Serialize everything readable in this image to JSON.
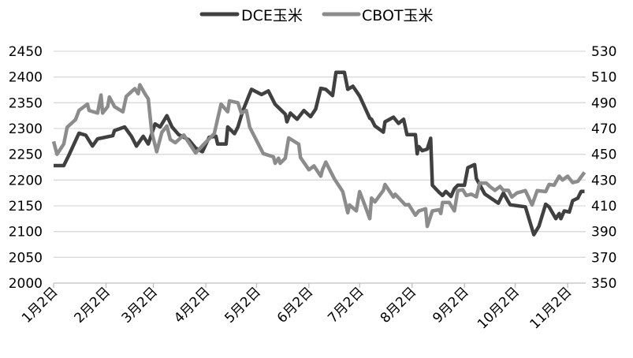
{
  "chart_data": {
    "type": "line",
    "title": "",
    "xlabel": "",
    "ylabel": "",
    "y2label": "",
    "grid": true,
    "legend_position": "top",
    "xlim": [
      "01-02",
      "11-12"
    ],
    "ylim": [
      2000,
      2450
    ],
    "y2lim": [
      350,
      530
    ],
    "x_ticks": [
      {
        "date": "01-02",
        "label": "1月2日"
      },
      {
        "date": "02-02",
        "label": "2月2日"
      },
      {
        "date": "03-02",
        "label": "3月2日"
      },
      {
        "date": "04-02",
        "label": "4月2日"
      },
      {
        "date": "05-02",
        "label": "5月2日"
      },
      {
        "date": "06-02",
        "label": "6月2日"
      },
      {
        "date": "07-02",
        "label": "7月2日"
      },
      {
        "date": "08-02",
        "label": "8月2日"
      },
      {
        "date": "09-02",
        "label": "9月2日"
      },
      {
        "date": "10-02",
        "label": "10月2日"
      },
      {
        "date": "11-02",
        "label": "11月2日"
      }
    ],
    "y_ticks": [
      "2000",
      "2050",
      "2100",
      "2150",
      "2200",
      "2250",
      "2300",
      "2350",
      "2400",
      "2450"
    ],
    "y2_ticks": [
      "350",
      "370",
      "390",
      "410",
      "430",
      "450",
      "470",
      "490",
      "510",
      "530"
    ],
    "series": [
      {
        "name": "DCE玉米",
        "axis": "left",
        "color": "#404040",
        "points": [
          [
            "01-02",
            2228
          ],
          [
            "01-08",
            2228
          ],
          [
            "01-11",
            2248
          ],
          [
            "01-17",
            2291
          ],
          [
            "01-21",
            2287
          ],
          [
            "01-25",
            2266
          ],
          [
            "01-28",
            2280
          ],
          [
            "02-06",
            2286
          ],
          [
            "02-07",
            2296
          ],
          [
            "02-13",
            2303
          ],
          [
            "02-17",
            2285
          ],
          [
            "02-20",
            2266
          ],
          [
            "02-24",
            2285
          ],
          [
            "02-27",
            2270
          ],
          [
            "03-03",
            2309
          ],
          [
            "03-06",
            2303
          ],
          [
            "03-10",
            2325
          ],
          [
            "03-13",
            2303
          ],
          [
            "03-17",
            2288
          ],
          [
            "03-23",
            2278
          ],
          [
            "03-27",
            2262
          ],
          [
            "03-31",
            2255
          ],
          [
            "04-04",
            2283
          ],
          [
            "04-08",
            2285
          ],
          [
            "04-09",
            2270
          ],
          [
            "04-14",
            2270
          ],
          [
            "04-15",
            2303
          ],
          [
            "04-19",
            2290
          ],
          [
            "04-21",
            2303
          ],
          [
            "04-24",
            2335
          ],
          [
            "04-29",
            2376
          ],
          [
            "05-05",
            2366
          ],
          [
            "05-09",
            2373
          ],
          [
            "05-13",
            2347
          ],
          [
            "05-19",
            2328
          ],
          [
            "05-20",
            2313
          ],
          [
            "05-22",
            2330
          ],
          [
            "05-26",
            2318
          ],
          [
            "05-30",
            2335
          ],
          [
            "06-03",
            2323
          ],
          [
            "06-06",
            2338
          ],
          [
            "06-09",
            2378
          ],
          [
            "06-12",
            2376
          ],
          [
            "06-16",
            2364
          ],
          [
            "06-18",
            2409
          ],
          [
            "06-23",
            2409
          ],
          [
            "06-25",
            2376
          ],
          [
            "06-28",
            2382
          ],
          [
            "07-02",
            2363
          ],
          [
            "07-08",
            2320
          ],
          [
            "07-09",
            2318
          ],
          [
            "07-11",
            2305
          ],
          [
            "07-16",
            2293
          ],
          [
            "07-17",
            2313
          ],
          [
            "07-22",
            2322
          ],
          [
            "07-25",
            2310
          ],
          [
            "07-28",
            2318
          ],
          [
            "07-30",
            2288
          ],
          [
            "08-04",
            2288
          ],
          [
            "08-05",
            2251
          ],
          [
            "08-06",
            2265
          ],
          [
            "08-08",
            2257
          ],
          [
            "08-11",
            2260
          ],
          [
            "08-13",
            2281
          ],
          [
            "08-14",
            2190
          ],
          [
            "08-18",
            2176
          ],
          [
            "08-20",
            2170
          ],
          [
            "08-22",
            2178
          ],
          [
            "08-25",
            2168
          ],
          [
            "08-27",
            2183
          ],
          [
            "08-29",
            2190
          ],
          [
            "09-02",
            2190
          ],
          [
            "09-04",
            2224
          ],
          [
            "09-08",
            2230
          ],
          [
            "09-09",
            2203
          ],
          [
            "09-14",
            2173
          ],
          [
            "09-22",
            2155
          ],
          [
            "09-25",
            2175
          ],
          [
            "09-29",
            2152
          ],
          [
            "10-08",
            2148
          ],
          [
            "10-13",
            2094
          ],
          [
            "10-16",
            2110
          ],
          [
            "10-20",
            2153
          ],
          [
            "10-22",
            2148
          ],
          [
            "10-26",
            2125
          ],
          [
            "10-28",
            2135
          ],
          [
            "10-29",
            2125
          ],
          [
            "10-31",
            2140
          ],
          [
            "11-03",
            2138
          ],
          [
            "11-05",
            2160
          ],
          [
            "11-08",
            2165
          ],
          [
            "11-10",
            2178
          ],
          [
            "11-12",
            2178
          ]
        ]
      },
      {
        "name": "CBOT玉米",
        "axis": "right",
        "color": "#8c8c8c",
        "points": [
          [
            "01-02",
            460
          ],
          [
            "01-04",
            450
          ],
          [
            "01-08",
            458
          ],
          [
            "01-10",
            471
          ],
          [
            "01-15",
            477
          ],
          [
            "01-17",
            484
          ],
          [
            "01-22",
            489
          ],
          [
            "01-23",
            484
          ],
          [
            "01-28",
            482
          ],
          [
            "01-30",
            496
          ],
          [
            "01-31",
            482
          ],
          [
            "02-03",
            487
          ],
          [
            "02-04",
            494.5
          ],
          [
            "02-07",
            487
          ],
          [
            "02-12",
            483
          ],
          [
            "02-14",
            495
          ],
          [
            "02-19",
            501
          ],
          [
            "02-21",
            497
          ],
          [
            "02-22",
            504
          ],
          [
            "02-25",
            497
          ],
          [
            "02-27",
            493
          ],
          [
            "03-01",
            467.6
          ],
          [
            "03-04",
            452
          ],
          [
            "03-07",
            467
          ],
          [
            "03-10",
            472
          ],
          [
            "03-12",
            461.5
          ],
          [
            "03-15",
            459
          ],
          [
            "03-20",
            465
          ],
          [
            "03-22",
            461
          ],
          [
            "03-27",
            451
          ],
          [
            "04-01",
            458
          ],
          [
            "04-07",
            466
          ],
          [
            "04-11",
            489
          ],
          [
            "04-15",
            483
          ],
          [
            "04-16",
            491.5
          ],
          [
            "04-21",
            490
          ],
          [
            "04-23",
            482
          ],
          [
            "04-26",
            484
          ],
          [
            "04-28",
            471
          ],
          [
            "05-06",
            450.5
          ],
          [
            "05-12",
            448
          ],
          [
            "05-13",
            443
          ],
          [
            "05-15",
            447
          ],
          [
            "05-16",
            443
          ],
          [
            "05-19",
            447
          ],
          [
            "05-21",
            462.7
          ],
          [
            "05-27",
            457.8
          ],
          [
            "05-28",
            447.5
          ],
          [
            "06-02",
            438
          ],
          [
            "06-05",
            441
          ],
          [
            "06-09",
            433
          ],
          [
            "06-10",
            438
          ],
          [
            "06-12",
            444
          ],
          [
            "06-17",
            431
          ],
          [
            "06-22",
            421
          ],
          [
            "06-25",
            404.6
          ],
          [
            "06-26",
            410.7
          ],
          [
            "06-30",
            406
          ],
          [
            "07-02",
            421
          ],
          [
            "07-05",
            410.7
          ],
          [
            "07-08",
            400
          ],
          [
            "07-09",
            416
          ],
          [
            "07-11",
            413
          ],
          [
            "07-16",
            422
          ],
          [
            "07-17",
            426.6
          ],
          [
            "07-22",
            416.8
          ],
          [
            "07-23",
            419
          ],
          [
            "07-29",
            410.7
          ],
          [
            "07-31",
            411
          ],
          [
            "08-04",
            402.7
          ],
          [
            "08-06",
            406
          ],
          [
            "08-10",
            407.7
          ],
          [
            "08-11",
            394
          ],
          [
            "08-14",
            406
          ],
          [
            "08-18",
            407
          ],
          [
            "08-19",
            404
          ],
          [
            "08-20",
            412.6
          ],
          [
            "08-24",
            412.6
          ],
          [
            "08-27",
            406
          ],
          [
            "08-29",
            421.8
          ],
          [
            "09-01",
            422.5
          ],
          [
            "09-03",
            418
          ],
          [
            "09-06",
            419
          ],
          [
            "09-09",
            417
          ],
          [
            "09-11",
            427.6
          ],
          [
            "09-15",
            427.6
          ],
          [
            "09-17",
            425
          ],
          [
            "09-20",
            422
          ],
          [
            "09-23",
            425
          ],
          [
            "09-25",
            422
          ],
          [
            "09-28",
            422
          ],
          [
            "09-30",
            416.8
          ],
          [
            "10-03",
            420
          ],
          [
            "10-08",
            421.8
          ],
          [
            "10-12",
            410.7
          ],
          [
            "10-15",
            421.8
          ],
          [
            "10-20",
            421
          ],
          [
            "10-22",
            426.6
          ],
          [
            "10-25",
            426
          ],
          [
            "10-28",
            433
          ],
          [
            "10-30",
            430
          ],
          [
            "11-02",
            433
          ],
          [
            "11-05",
            428
          ],
          [
            "11-08",
            429
          ],
          [
            "11-12",
            436
          ]
        ]
      }
    ]
  }
}
